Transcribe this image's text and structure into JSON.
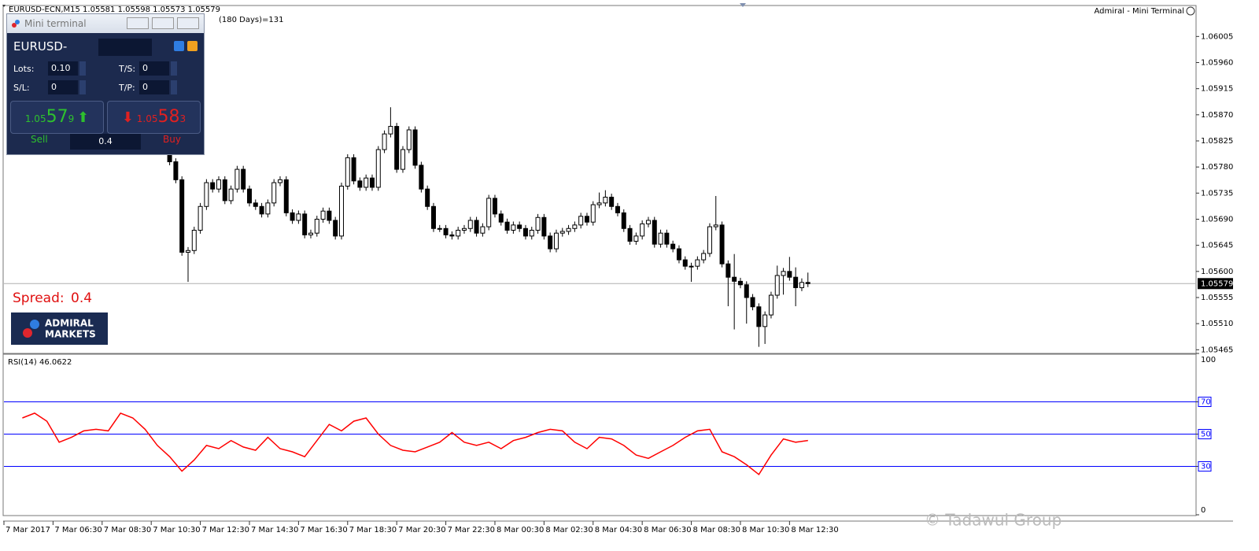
{
  "header": {
    "symbol_info": "EURUSD-ECN,M15  1.05581 1.05598 1.05573 1.05579",
    "bars": "(180 Days)=131",
    "expert": "Admiral - Mini Terminal"
  },
  "mini_terminal": {
    "title": "Mini terminal",
    "symbol": "EURUSD-",
    "lots_label": "Lots:",
    "lots": "0.10",
    "ts_label": "T/S:",
    "ts": "0",
    "sl_label": "S/L:",
    "sl": "0",
    "tp_label": "T/P:",
    "tp": "0",
    "sell_price": {
      "prefix": "1.05",
      "big": "57",
      "small": "9"
    },
    "buy_price": {
      "prefix": "1.05",
      "big": "58",
      "small": "3"
    },
    "sell": "Sell",
    "buy": "Buy",
    "volume": "0.4"
  },
  "spread": {
    "label": "Spread:",
    "value": "0.4"
  },
  "logo": {
    "line1": "ADMIRAL",
    "line2": "MARKETS"
  },
  "watermark": "© Tadawul Group",
  "chart_data": [
    {
      "type": "candlestick",
      "last_price": 1.05579,
      "xlim": [
        4.5,
        53.06
      ],
      "ylim": [
        1.0546,
        1.06057
      ],
      "yticks": [
        1.06005,
        {
          "value": 1.0596,
          "label": "1.05960"
        },
        1.05915,
        {
          "value": 1.0587,
          "label": "1.05870"
        },
        1.05825,
        {
          "value": 1.0578,
          "label": "1.05780"
        },
        1.05735,
        {
          "value": 1.0569,
          "label": "1.05690"
        },
        1.05645,
        {
          "value": 1.056,
          "label": "1.05600"
        },
        1.05555,
        {
          "value": 1.0551,
          "label": "1.05510"
        },
        1.05465
      ],
      "x": [
        11.25,
        11.5,
        11.75,
        12,
        12.25,
        12.5,
        12.75,
        13,
        13.25,
        13.5,
        13.75,
        14,
        14.25,
        14.5,
        14.75,
        15,
        15.25,
        15.5,
        15.75,
        16,
        16.25,
        16.5,
        16.75,
        17,
        17.25,
        17.5,
        17.75,
        18,
        18.25,
        18.5,
        18.75,
        19,
        19.25,
        19.5,
        19.75,
        20,
        20.25,
        20.5,
        20.75,
        21,
        21.25,
        21.5,
        21.75,
        22,
        22.25,
        22.5,
        22.75,
        23,
        23.25,
        23.5,
        23.75,
        24,
        24.25,
        24.5,
        24.75,
        25,
        25.25,
        25.5,
        25.75,
        26,
        26.25,
        26.5,
        26.75,
        27,
        27.25,
        27.5,
        27.75,
        28,
        28.25,
        28.5,
        28.75,
        29,
        29.25,
        29.5,
        29.75,
        30,
        30.25,
        30.5,
        30.75,
        31,
        31.25,
        31.5,
        31.75,
        32,
        32.25,
        32.5,
        32.75,
        33,
        33.25,
        33.5,
        33.75,
        34,
        34.25,
        34.5,
        34.75,
        35,
        35.25,
        35.5,
        35.75,
        36,
        36.25,
        36.5,
        36.75,
        37,
        37.25
      ],
      "open": [
        1.058,
        1.05789,
        1.05758,
        1.05633,
        1.05636,
        1.05671,
        1.05712,
        1.05753,
        1.05742,
        1.05758,
        1.05722,
        1.05742,
        1.05776,
        1.05742,
        1.05718,
        1.05712,
        1.05699,
        1.05718,
        1.05753,
        1.05758,
        1.05701,
        1.05688,
        1.05699,
        1.05663,
        1.05666,
        1.0569,
        1.05704,
        1.05688,
        1.05661,
        1.05747,
        1.05796,
        1.05756,
        1.05745,
        1.05761,
        1.05745,
        1.0581,
        1.05837,
        1.0585,
        1.05776,
        1.0581,
        1.05844,
        1.05783,
        1.05742,
        1.05712,
        1.05674,
        1.05674,
        1.05663,
        1.05661,
        1.05671,
        1.05674,
        1.05688,
        1.05666,
        1.05677,
        1.05726,
        1.05699,
        1.05685,
        1.05671,
        1.0568,
        1.05674,
        1.05661,
        1.05671,
        1.05693,
        1.05661,
        1.05639,
        1.05666,
        1.05669,
        1.05674,
        1.0568,
        1.05695,
        1.05685,
        1.05715,
        1.05718,
        1.05728,
        1.05712,
        1.05701,
        1.05674,
        1.05652,
        1.05661,
        1.05682,
        1.05688,
        1.05647,
        1.05666,
        1.05647,
        1.05639,
        1.0562,
        1.05609,
        1.05609,
        1.0562,
        1.05631,
        1.05677,
        1.0568,
        1.05613,
        1.0559,
        1.05583,
        1.05577,
        1.05555,
        1.05539,
        1.05505,
        1.05525,
        1.05559,
        1.05593,
        1.056,
        1.0559,
        1.05572,
        1.05581
      ],
      "high": [
        1.05806,
        1.05795,
        1.05764,
        1.05642,
        1.05677,
        1.05718,
        1.05759,
        1.05759,
        1.05764,
        1.05764,
        1.05748,
        1.05782,
        1.05782,
        1.05748,
        1.05724,
        1.05718,
        1.05724,
        1.05759,
        1.05764,
        1.05764,
        1.05707,
        1.05705,
        1.05705,
        1.05672,
        1.05696,
        1.0571,
        1.0571,
        1.05694,
        1.05753,
        1.05802,
        1.05802,
        1.05762,
        1.05767,
        1.05767,
        1.05816,
        1.05843,
        1.05883,
        1.05856,
        1.05816,
        1.0585,
        1.0585,
        1.05789,
        1.05748,
        1.05718,
        1.0568,
        1.0568,
        1.05669,
        1.05677,
        1.0568,
        1.05694,
        1.05694,
        1.05683,
        1.05732,
        1.05732,
        1.05705,
        1.05691,
        1.05686,
        1.05686,
        1.0568,
        1.05677,
        1.05699,
        1.05699,
        1.05667,
        1.05672,
        1.05675,
        1.0568,
        1.05686,
        1.05701,
        1.05701,
        1.05721,
        1.05736,
        1.0574,
        1.05734,
        1.05718,
        1.05707,
        1.0568,
        1.05667,
        1.05688,
        1.05694,
        1.05694,
        1.05672,
        1.05672,
        1.05653,
        1.05645,
        1.05626,
        1.05615,
        1.05626,
        1.05637,
        1.05683,
        1.0573,
        1.05686,
        1.05619,
        1.0563,
        1.05589,
        1.05583,
        1.05561,
        1.05545,
        1.05531,
        1.05565,
        1.0561,
        1.05606,
        1.05625,
        1.05607,
        1.05588,
        1.05598
      ],
      "low": [
        1.05783,
        1.05752,
        1.05627,
        1.05582,
        1.0563,
        1.05665,
        1.05706,
        1.05736,
        1.05736,
        1.05716,
        1.05716,
        1.05736,
        1.05736,
        1.05712,
        1.05706,
        1.05693,
        1.05693,
        1.05712,
        1.05747,
        1.05695,
        1.05682,
        1.05682,
        1.05657,
        1.05657,
        1.0566,
        1.05684,
        1.05682,
        1.05655,
        1.05655,
        1.05741,
        1.0575,
        1.05739,
        1.05739,
        1.05739,
        1.05739,
        1.05804,
        1.05831,
        1.0577,
        1.0577,
        1.05804,
        1.05777,
        1.05736,
        1.05706,
        1.05668,
        1.05668,
        1.05657,
        1.05655,
        1.05655,
        1.05665,
        1.05668,
        1.0566,
        1.0566,
        1.05671,
        1.05693,
        1.05679,
        1.05665,
        1.05665,
        1.05668,
        1.05655,
        1.05655,
        1.05665,
        1.05655,
        1.05633,
        1.05633,
        1.0566,
        1.05663,
        1.05668,
        1.05674,
        1.05679,
        1.05679,
        1.05709,
        1.05712,
        1.05706,
        1.05695,
        1.05668,
        1.05646,
        1.05646,
        1.05655,
        1.05676,
        1.05641,
        1.05641,
        1.05641,
        1.05633,
        1.05614,
        1.05603,
        1.05582,
        1.05603,
        1.05614,
        1.05625,
        1.05671,
        1.05607,
        1.0554,
        1.055,
        1.05571,
        1.0551,
        1.05533,
        1.0547,
        1.05475,
        1.05519,
        1.05553,
        1.0556,
        1.05584,
        1.0554,
        1.05566,
        1.05573
      ],
      "close": [
        1.05789,
        1.05758,
        1.05633,
        1.05636,
        1.05671,
        1.05712,
        1.05753,
        1.05742,
        1.05758,
        1.05722,
        1.05742,
        1.05776,
        1.05742,
        1.05718,
        1.05712,
        1.05699,
        1.05718,
        1.05753,
        1.05758,
        1.05701,
        1.05688,
        1.05699,
        1.05663,
        1.05666,
        1.0569,
        1.05704,
        1.05688,
        1.05661,
        1.05747,
        1.05796,
        1.05756,
        1.05745,
        1.05761,
        1.05745,
        1.0581,
        1.05837,
        1.0585,
        1.05776,
        1.0581,
        1.05844,
        1.05783,
        1.05742,
        1.05712,
        1.05674,
        1.05674,
        1.05663,
        1.05661,
        1.05671,
        1.05674,
        1.05688,
        1.05666,
        1.05677,
        1.05726,
        1.05699,
        1.05685,
        1.05671,
        1.0568,
        1.05674,
        1.05661,
        1.05671,
        1.05693,
        1.05661,
        1.05639,
        1.05666,
        1.05669,
        1.05674,
        1.0568,
        1.05695,
        1.05685,
        1.05715,
        1.05718,
        1.05728,
        1.05712,
        1.05701,
        1.05674,
        1.05652,
        1.05661,
        1.05682,
        1.05688,
        1.05647,
        1.05666,
        1.05647,
        1.05639,
        1.0562,
        1.05609,
        1.05609,
        1.0562,
        1.05631,
        1.05677,
        1.0568,
        1.05613,
        1.0559,
        1.05583,
        1.05577,
        1.05555,
        1.05539,
        1.05505,
        1.05525,
        1.05559,
        1.05593,
        1.056,
        1.0559,
        1.05572,
        1.05581,
        1.05579
      ]
    },
    {
      "type": "line",
      "title": "RSI(14) 46.0622",
      "color": "#ff0000",
      "xlim": [
        4.5,
        53.06
      ],
      "ylim": [
        0,
        100
      ],
      "yticks": [
        0,
        30,
        50,
        70,
        100
      ],
      "levels": [
        30,
        50,
        70
      ],
      "level_color": "#0000ff",
      "xticks": [
        {
          "value": 4.5,
          "label": "7 Mar 2017"
        },
        {
          "value": 6.5,
          "label": "7 Mar 06:30"
        },
        {
          "value": 8.5,
          "label": "7 Mar 08:30"
        },
        {
          "value": 10.5,
          "label": "7 Mar 10:30"
        },
        {
          "value": 12.5,
          "label": "7 Mar 12:30"
        },
        {
          "value": 14.5,
          "label": "7 Mar 14:30"
        },
        {
          "value": 16.5,
          "label": "7 Mar 16:30"
        },
        {
          "value": 18.5,
          "label": "7 Mar 18:30"
        },
        {
          "value": 20.5,
          "label": "7 Mar 20:30"
        },
        {
          "value": 22.5,
          "label": "7 Mar 22:30"
        },
        {
          "value": 24.5,
          "label": "8 Mar 00:30"
        },
        {
          "value": 26.5,
          "label": "8 Mar 02:30"
        },
        {
          "value": 28.5,
          "label": "8 Mar 04:30"
        },
        {
          "value": 30.5,
          "label": "8 Mar 06:30"
        },
        {
          "value": 32.5,
          "label": "8 Mar 08:30"
        },
        {
          "value": 34.5,
          "label": "8 Mar 10:30"
        },
        {
          "value": 36.5,
          "label": "8 Mar 12:30"
        }
      ],
      "x": [
        5.25,
        5.75,
        6.25,
        6.75,
        7.25,
        7.75,
        8.25,
        8.75,
        9.25,
        9.75,
        10.25,
        10.75,
        11.25,
        11.75,
        12.25,
        12.75,
        13.25,
        13.75,
        14.25,
        14.75,
        15.25,
        15.75,
        16.25,
        16.75,
        17.25,
        17.75,
        18.25,
        18.75,
        19.25,
        19.75,
        20.25,
        20.75,
        21.25,
        21.75,
        22.25,
        22.75,
        23.25,
        23.75,
        24.25,
        24.75,
        25.25,
        25.75,
        26.25,
        26.75,
        27.25,
        27.75,
        28.25,
        28.75,
        29.25,
        29.75,
        30.25,
        30.75,
        31.25,
        31.75,
        32.25,
        32.75,
        33.25,
        33.75,
        34.25,
        34.75,
        35.25,
        35.75,
        36.25,
        36.75,
        37.25
      ],
      "values": [
        60,
        63,
        58,
        45,
        48,
        52,
        53,
        52,
        63,
        60,
        53,
        43,
        36,
        27,
        34,
        43,
        41,
        46,
        42,
        40,
        48,
        41,
        39,
        36,
        46,
        56,
        52,
        58,
        60,
        50,
        43,
        40,
        39,
        42,
        45,
        51,
        45,
        43,
        45,
        41,
        46,
        48,
        51,
        53,
        52,
        45,
        41,
        48,
        47,
        43,
        37,
        35,
        39,
        43,
        48,
        52,
        53,
        39,
        36,
        31,
        25,
        37,
        47,
        45,
        46.0622
      ]
    }
  ]
}
